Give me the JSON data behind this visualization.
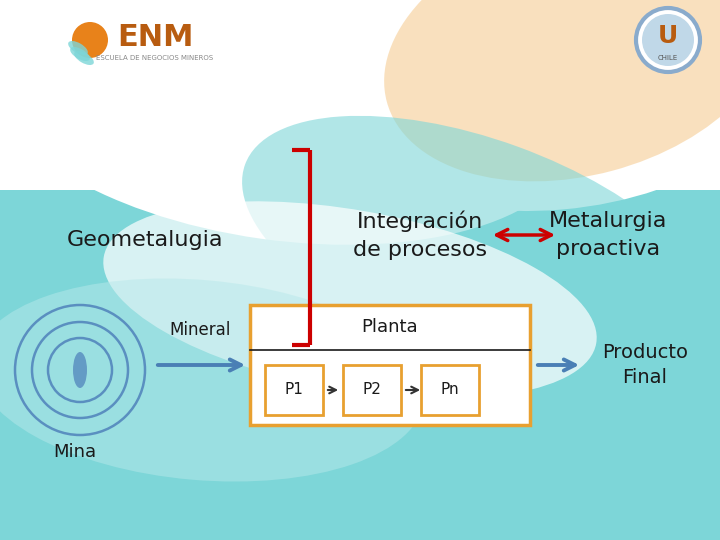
{
  "bg_color_top": "#ffffff",
  "bg_color_bottom": "#7dd6d8",
  "geometal_label": "Geometalugia",
  "integracion_label": "Integración\nde procesos",
  "metalurgia_label": "Metalurgia\nproactiva",
  "mineral_label": "Mineral",
  "mina_label": "Mina",
  "planta_label": "Planta",
  "producto_label": "Producto\nFinal",
  "p1_label": "P1",
  "p2_label": "P2",
  "pn_label": "Pn",
  "bracket_color": "#cc0000",
  "arrow_red_color": "#cc0000",
  "arrow_blue_color": "#4a7fb5",
  "arrow_black_color": "#333333",
  "box_color": "#e8a030",
  "text_color": "#1a1a1a",
  "white_color": "#ffffff",
  "peach_color": "#f5c88a",
  "cyan_color": "#7dd6d8",
  "light_cyan": "#b8e8ea"
}
